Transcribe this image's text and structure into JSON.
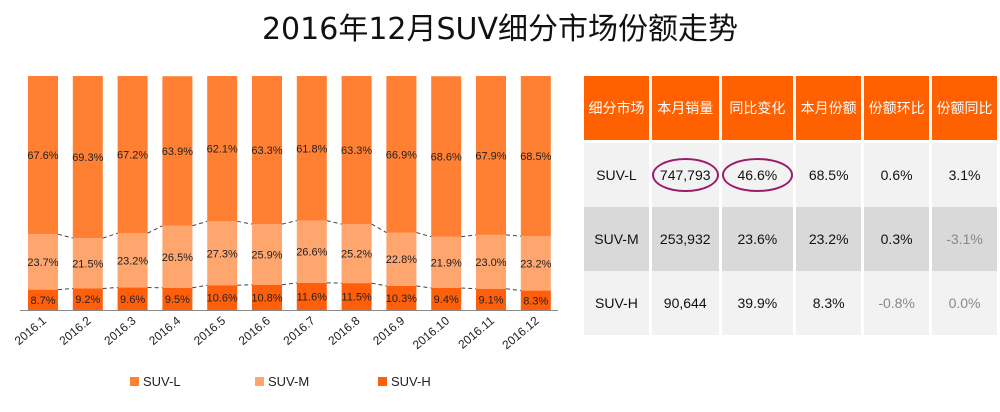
{
  "title": "2016年12月SUV细分市场份额走势",
  "chart_data": {
    "type": "bar",
    "stacked": true,
    "title": "2016年12月SUV细分市场份额走势",
    "categories": [
      "2016.1",
      "2016.2",
      "2016.3",
      "2016.4",
      "2016.5",
      "2016.6",
      "2016.7",
      "2016.8",
      "2016.9",
      "2016.10",
      "2016.11",
      "2016.12"
    ],
    "series": [
      {
        "name": "SUV-H",
        "color": "#FF5F0A",
        "values": [
          8.7,
          9.2,
          9.6,
          9.5,
          10.6,
          10.8,
          11.6,
          11.5,
          10.3,
          9.4,
          9.1,
          8.3
        ]
      },
      {
        "name": "SUV-M",
        "color": "#FFA56E",
        "values": [
          23.7,
          21.5,
          23.2,
          26.5,
          27.3,
          25.9,
          26.6,
          25.2,
          22.8,
          21.9,
          23.0,
          23.2
        ]
      },
      {
        "name": "SUV-L",
        "color": "#FF7F33",
        "values": [
          67.6,
          69.3,
          67.2,
          63.9,
          62.1,
          63.3,
          61.8,
          63.3,
          66.9,
          68.6,
          67.9,
          68.5
        ]
      }
    ],
    "ylim": [
      0,
      100
    ],
    "legend_position": "bottom",
    "legend": [
      "SUV-L",
      "SUV-M",
      "SUV-H"
    ]
  },
  "table": {
    "headers": [
      "细分市场",
      "本月销量",
      "同比变化",
      "本月份额",
      "份额环比",
      "份额同比"
    ],
    "rows": [
      {
        "cells": [
          "SUV-L",
          "747,793",
          "46.6%",
          "68.5%",
          "0.6%",
          "3.1%"
        ]
      },
      {
        "cells": [
          "SUV-M",
          "253,932",
          "23.6%",
          "23.2%",
          "0.3%",
          "-3.1%"
        ]
      },
      {
        "cells": [
          "SUV-H",
          "90,644",
          "39.9%",
          "8.3%",
          "-0.8%",
          "0.0%"
        ]
      }
    ]
  }
}
